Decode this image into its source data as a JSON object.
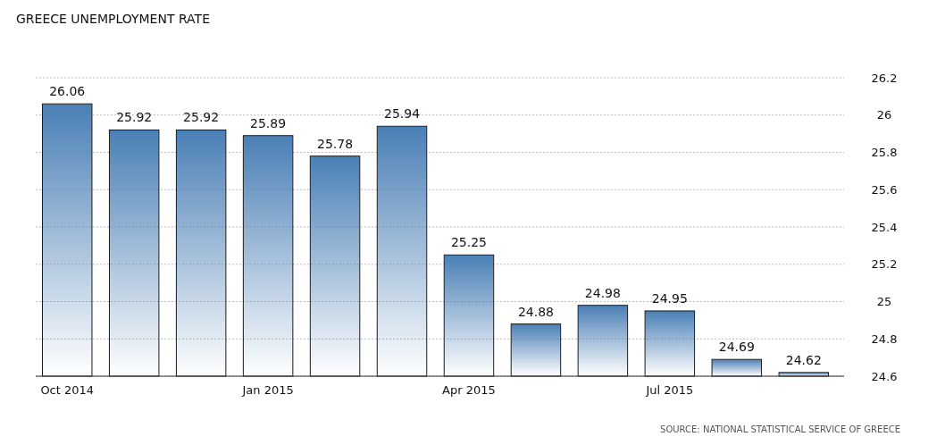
{
  "chart_data": {
    "type": "bar",
    "title": "GREECE UNEMPLOYMENT RATE",
    "categories": [
      "Oct 2014",
      null,
      null,
      "Jan 2015",
      null,
      null,
      "Apr 2015",
      null,
      null,
      "Jul 2015",
      null,
      null
    ],
    "values": [
      26.06,
      25.92,
      25.92,
      25.89,
      25.78,
      25.94,
      25.25,
      24.88,
      24.98,
      24.95,
      24.69,
      24.62
    ],
    "color": "#4a7fb6",
    "ylim": [
      24.6,
      26.2
    ],
    "yticks": [
      24.6,
      24.8,
      25,
      25.2,
      25.4,
      25.6,
      25.8,
      26,
      26.2
    ],
    "grid": "y",
    "data_labels": true,
    "annotations": [
      "SOURCE: NATIONAL STATISTICAL SERVICE OF GREECE"
    ]
  }
}
